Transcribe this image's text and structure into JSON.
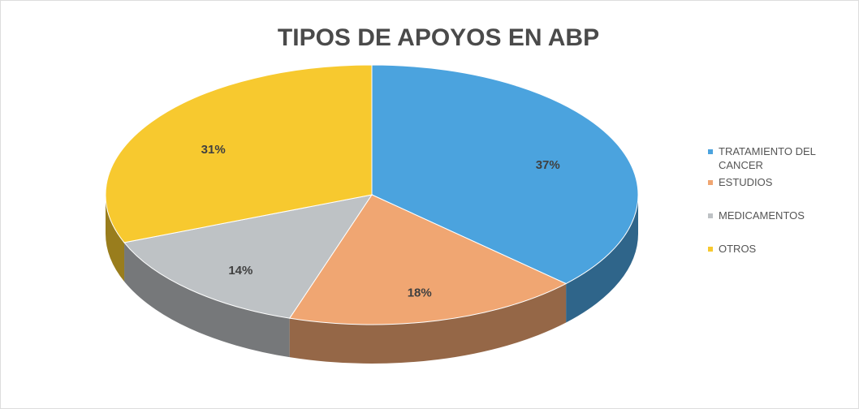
{
  "chart_data": {
    "type": "pie",
    "title": "TIPOS DE APOYOS EN ABP",
    "categories": [
      "TRATAMIENTO DEL CANCER",
      "ESTUDIOS",
      "MEDICAMENTOS",
      "OTROS"
    ],
    "values": [
      37,
      18,
      14,
      31
    ],
    "value_labels": [
      "37%",
      "18%",
      "14%",
      "31%"
    ],
    "colors": [
      "#4ba3de",
      "#f0a672",
      "#bec2c5",
      "#f7c92f"
    ],
    "legend": "right"
  }
}
